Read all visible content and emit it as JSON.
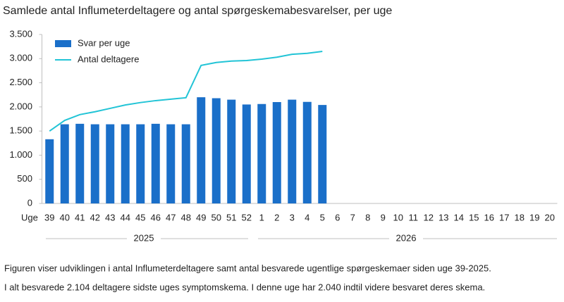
{
  "chart_data": {
    "type": "bar_line",
    "title": "Samlede antal Influmeterdeltagere og antal spørgeskemabesvarelser, per uge",
    "x_label": "Uge",
    "categories": [
      "39",
      "40",
      "41",
      "42",
      "43",
      "44",
      "45",
      "46",
      "47",
      "48",
      "49",
      "50",
      "51",
      "52",
      "1",
      "2",
      "3",
      "4",
      "5",
      "6",
      "7",
      "8",
      "9",
      "10",
      "11",
      "12",
      "13",
      "14",
      "15",
      "16",
      "17",
      "18",
      "19",
      "20"
    ],
    "x_group_labels": [
      "2025",
      "2026"
    ],
    "series": [
      {
        "name": "Svar per uge",
        "type": "bar",
        "color": "#1a6fc9",
        "values": [
          1330,
          1640,
          1650,
          1640,
          1640,
          1640,
          1640,
          1650,
          1640,
          1640,
          2200,
          2180,
          2150,
          2050,
          2060,
          2100,
          2150,
          2104,
          2040,
          null,
          null,
          null,
          null,
          null,
          null,
          null,
          null,
          null,
          null,
          null,
          null,
          null,
          null,
          null
        ]
      },
      {
        "name": "Antal deltagere",
        "type": "line",
        "color": "#22c4d6",
        "values": [
          1500,
          1720,
          1840,
          1900,
          1970,
          2040,
          2090,
          2130,
          2160,
          2190,
          2860,
          2920,
          2950,
          2960,
          2990,
          3030,
          3090,
          3110,
          3150,
          null,
          null,
          null,
          null,
          null,
          null,
          null,
          null,
          null,
          null,
          null,
          null,
          null,
          null,
          null
        ]
      }
    ],
    "ylim": [
      0,
      3500
    ],
    "yticks": [
      0,
      500,
      {
        "value": 1000,
        "label": "1.000"
      },
      {
        "value": 1500,
        "label": "1.500"
      },
      {
        "value": 2000,
        "label": "2.000"
      },
      {
        "value": 2500,
        "label": "2.500"
      },
      {
        "value": 3000,
        "label": "3.000"
      },
      {
        "value": 3500,
        "label": "3.500"
      }
    ],
    "legend": "top-left",
    "notes": [
      "Figuren viser udviklingen i antal Influmeterdeltagere  samt antal besvarede ugentlige spørgeskemaer siden uge 39-2025.",
      "I alt besvarede 2.104 deltagere sidste uges symptomskema. I denne uge har 2.040 indtil videre besvaret deres skema."
    ]
  }
}
